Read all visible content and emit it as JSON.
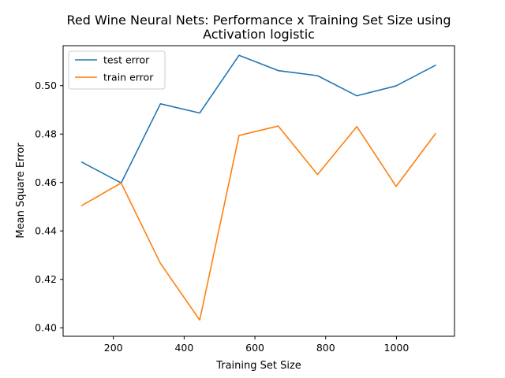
{
  "chart_data": {
    "type": "line",
    "title": "Red Wine Neural Nets: Performance x Training Set Size using",
    "subtitle": "Activation logistic",
    "xlabel": "Training Set Size",
    "ylabel": "Mean Square Error",
    "xlim": [
      58,
      1164
    ],
    "ylim": [
      0.3965,
      0.5165
    ],
    "xticks": [
      200,
      400,
      600,
      800,
      1000
    ],
    "yticks": [
      0.4,
      0.42,
      0.44,
      0.46,
      0.48,
      0.5
    ],
    "grid": false,
    "legend_position": "upper-left",
    "x": [
      111,
      222,
      333,
      444,
      555,
      666,
      777,
      888,
      999,
      1110
    ],
    "series": [
      {
        "name": "test error",
        "color": "#1f77b4",
        "values": [
          0.4684,
          0.4598,
          0.4925,
          0.4887,
          0.5125,
          0.5062,
          0.5041,
          0.4958,
          0.4999,
          0.5084
        ]
      },
      {
        "name": "train error",
        "color": "#ff7f0e",
        "values": [
          0.4505,
          0.4598,
          0.4266,
          0.4032,
          0.4794,
          0.4833,
          0.4633,
          0.4831,
          0.4584,
          0.4801
        ]
      }
    ]
  }
}
